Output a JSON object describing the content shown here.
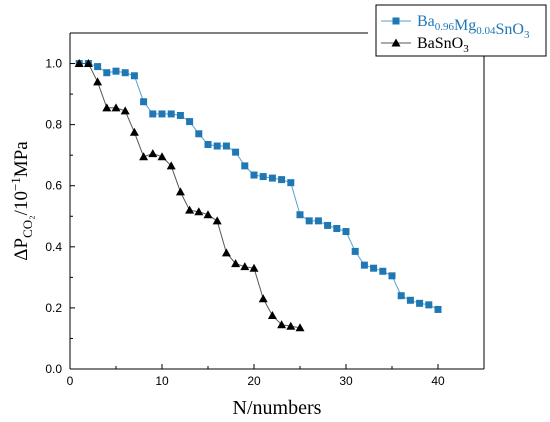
{
  "chart_data": {
    "type": "line",
    "xlabel": "N/numbers",
    "ylabel": {
      "prefix": "ΔP",
      "sub": "CO₂",
      "mid": "/10",
      "sup": "−1",
      "suffix": "MPa"
    },
    "xlim": [
      0,
      45
    ],
    "ylim": [
      0,
      1.1
    ],
    "xticks": [
      0,
      10,
      20,
      30,
      40
    ],
    "yticks": [
      0.0,
      0.2,
      0.4,
      0.6,
      0.8,
      1.0
    ],
    "xtick_labels": [
      "0",
      "10",
      "20",
      "30",
      "40"
    ],
    "ytick_labels": [
      "0.0",
      "0.2",
      "0.4",
      "0.6",
      "0.8",
      "1.0"
    ],
    "legend_position": "top-right",
    "series": [
      {
        "id": "ba-mg",
        "legend": [
          {
            "t": "Ba"
          },
          {
            "t": "0.96",
            "s": "sub"
          },
          {
            "t": "Mg"
          },
          {
            "t": "0.04",
            "s": "sub"
          },
          {
            "t": "SnO"
          },
          {
            "t": "3",
            "s": "sub"
          }
        ],
        "color": "#1f78b4",
        "line_color": "#5aa3cf",
        "marker": "square",
        "x": [
          1,
          2,
          3,
          4,
          5,
          6,
          7,
          8,
          9,
          10,
          11,
          12,
          13,
          14,
          15,
          16,
          17,
          18,
          19,
          20,
          21,
          22,
          23,
          24,
          25,
          26,
          27,
          28,
          29,
          30,
          31,
          32,
          33,
          34,
          35,
          36,
          37,
          38,
          39,
          40
        ],
        "y": [
          1.0,
          1.0,
          0.99,
          0.97,
          0.975,
          0.97,
          0.96,
          0.875,
          0.835,
          0.835,
          0.835,
          0.83,
          0.81,
          0.77,
          0.735,
          0.73,
          0.73,
          0.71,
          0.665,
          0.635,
          0.63,
          0.625,
          0.62,
          0.61,
          0.505,
          0.485,
          0.485,
          0.47,
          0.46,
          0.45,
          0.385,
          0.34,
          0.33,
          0.32,
          0.305,
          0.24,
          0.225,
          0.215,
          0.21,
          0.195
        ]
      },
      {
        "id": "basno3",
        "legend": [
          {
            "t": "BaSnO"
          },
          {
            "t": "3",
            "s": "sub"
          }
        ],
        "color": "#000000",
        "line_color": "#555555",
        "marker": "triangle",
        "x": [
          1,
          2,
          3,
          4,
          5,
          6,
          7,
          8,
          9,
          10,
          11,
          12,
          13,
          14,
          15,
          16,
          17,
          18,
          19,
          20,
          21,
          22,
          23,
          24,
          25
        ],
        "y": [
          1.0,
          1.0,
          0.94,
          0.855,
          0.855,
          0.845,
          0.775,
          0.695,
          0.705,
          0.695,
          0.665,
          0.58,
          0.52,
          0.515,
          0.505,
          0.485,
          0.38,
          0.345,
          0.335,
          0.33,
          0.23,
          0.175,
          0.145,
          0.14,
          0.135
        ]
      }
    ]
  }
}
